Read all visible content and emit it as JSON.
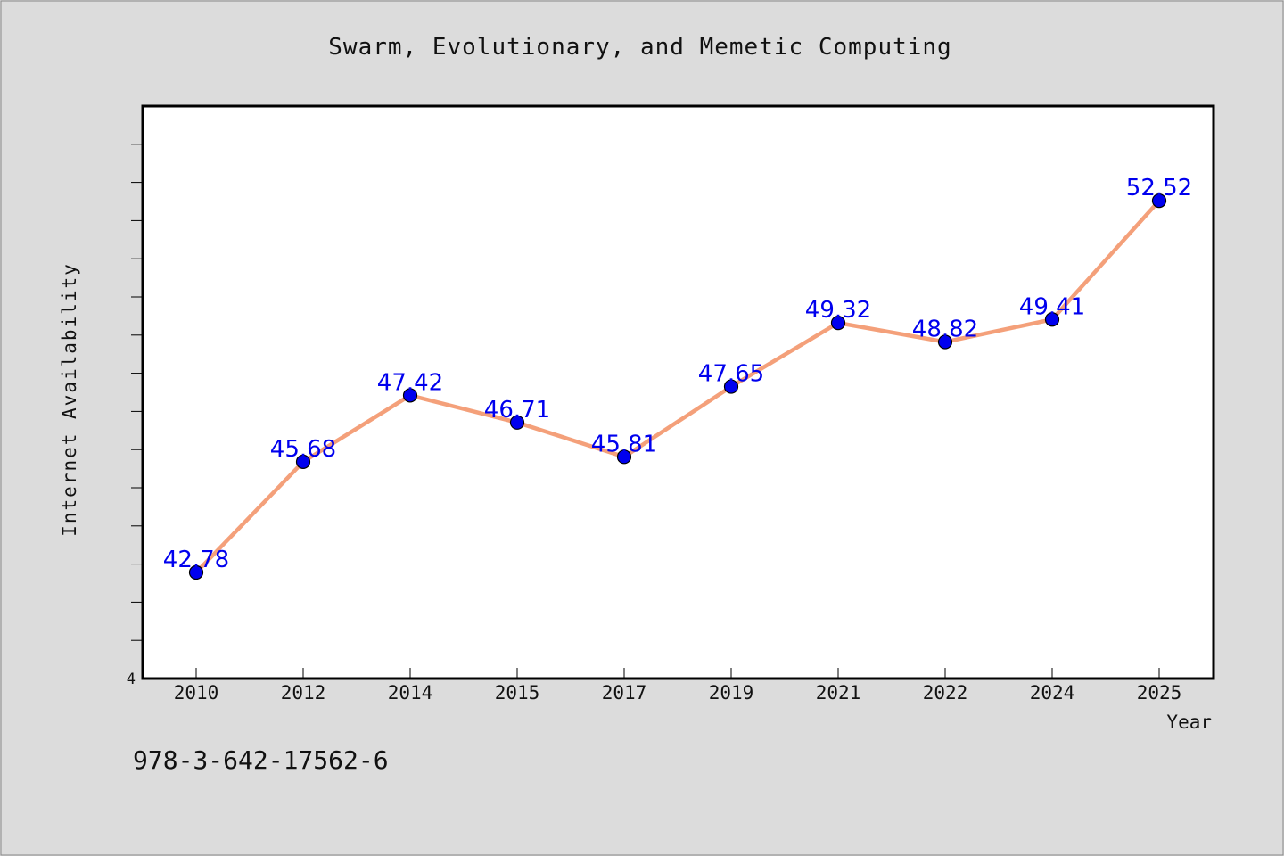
{
  "chart_data": {
    "type": "line",
    "title": "Swarm, Evolutionary, and Memetic Computing",
    "xlabel": "Year",
    "ylabel": "Internet Availability",
    "categories": [
      "2010",
      "2012",
      "2014",
      "2015",
      "2017",
      "2019",
      "2021",
      "2022",
      "2024",
      "2025"
    ],
    "series": [
      {
        "values": [
          42.78,
          45.68,
          47.42,
          46.71,
          45.81,
          47.65,
          49.32,
          48.82,
          49.41,
          52.52
        ],
        "labels": [
          "42.78",
          "45.68",
          "47.42",
          "46.71",
          "45.81",
          "47.65",
          "49.32",
          "48.82",
          "49.41",
          "52.52"
        ]
      }
    ],
    "ylim": [
      40,
      55
    ],
    "y_tick_step": 1,
    "y_visible_tick_label": "4",
    "grid": false,
    "legend": "none",
    "colors": {
      "line": "#f4a07a",
      "marker": "#0000ee",
      "label": "#0000ee",
      "plot_bg": "#ffffff",
      "page_bg": "#dcdcdc"
    }
  },
  "footer_text": "978-3-642-17562-6"
}
